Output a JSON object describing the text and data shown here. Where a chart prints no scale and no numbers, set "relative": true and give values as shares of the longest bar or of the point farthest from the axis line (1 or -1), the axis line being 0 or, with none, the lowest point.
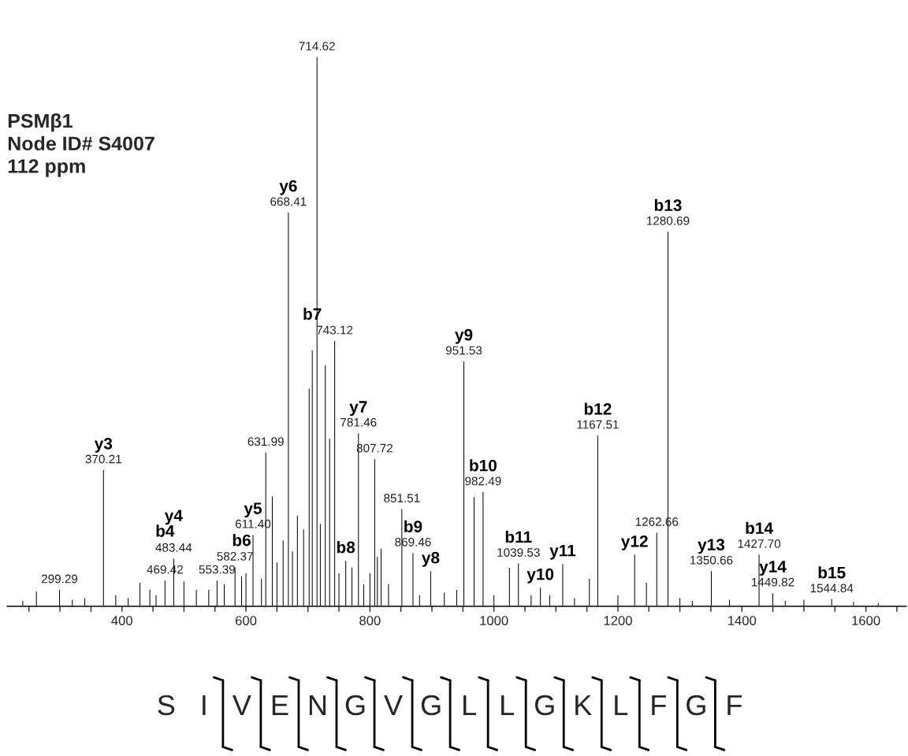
{
  "chart_data": {
    "type": "bar",
    "relative": true,
    "color": "#000000",
    "x": [
      240,
      262,
      299.29,
      320,
      340,
      370.21,
      390,
      410,
      429,
      445,
      455,
      469.42,
      483.44,
      500,
      520,
      540,
      553.39,
      565,
      582.37,
      593,
      600,
      611.4,
      625,
      631.99,
      642.5,
      650,
      660,
      668.41,
      675,
      683,
      693,
      702,
      707,
      714.62,
      720,
      728,
      735,
      743.12,
      750,
      761,
      771,
      781.46,
      790,
      800,
      807.72,
      812,
      818,
      830,
      851.51,
      869.46,
      880,
      898,
      920,
      940,
      951.53,
      968,
      982.49,
      1000,
      1025,
      1039.53,
      1060,
      1075,
      1090,
      1111,
      1130,
      1154,
      1167.51,
      1200,
      1227,
      1246,
      1262.66,
      1280.69,
      1300,
      1320,
      1350.66,
      1380,
      1427.7,
      1449.82,
      1470,
      1500,
      1544.84,
      1580,
      1620
    ],
    "values": [
      0.01,
      0.027,
      0.03,
      0.012,
      0.015,
      0.248,
      0.02,
      0.015,
      0.043,
      0.03,
      0.02,
      0.047,
      0.087,
      0.045,
      0.03,
      0.03,
      0.047,
      0.04,
      0.071,
      0.054,
      0.06,
      0.13,
      0.05,
      0.28,
      0.2,
      0.08,
      0.12,
      0.717,
      0.1,
      0.165,
      0.14,
      0.396,
      0.466,
      1,
      0.15,
      0.439,
      0.305,
      0.483,
      0.06,
      0.083,
      0.071,
      0.315,
      0.04,
      0.06,
      0.268,
      0.09,
      0.105,
      0.04,
      0.177,
      0.097,
      0.02,
      0.064,
      0.025,
      0.03,
      0.446,
      0.199,
      0.208,
      0.02,
      0.07,
      0.078,
      0.02,
      0.034,
      0.02,
      0.077,
      0.015,
      0.05,
      0.311,
      0.02,
      0.094,
      0.043,
      0.134,
      0.682,
      0.015,
      0.01,
      0.064,
      0.012,
      0.094,
      0.024,
      0.01,
      0.012,
      0.013,
      0.008,
      0.006
    ],
    "xlim": [
      215,
      1665
    ],
    "xticks": [
      {
        "value": 250,
        "label": null
      },
      {
        "value": 300,
        "label": null
      },
      {
        "value": 350,
        "label": null
      },
      400,
      {
        "value": 450,
        "label": null
      },
      {
        "value": 500,
        "label": null
      },
      {
        "value": 550,
        "label": null
      },
      600,
      {
        "value": 650,
        "label": null
      },
      {
        "value": 700,
        "label": null
      },
      {
        "value": 750,
        "label": null
      },
      800,
      {
        "value": 850,
        "label": null
      },
      {
        "value": 900,
        "label": null
      },
      {
        "value": 950,
        "label": null
      },
      1000,
      {
        "value": 1050,
        "label": null
      },
      {
        "value": 1100,
        "label": null
      },
      {
        "value": 1150,
        "label": null
      },
      1200,
      {
        "value": 1250,
        "label": null
      },
      {
        "value": 1300,
        "label": null
      },
      {
        "value": 1350,
        "label": null
      },
      1400,
      {
        "value": 1450,
        "label": null
      },
      {
        "value": 1500,
        "label": null
      },
      {
        "value": 1550,
        "label": null
      },
      1600,
      {
        "value": 1650,
        "label": null
      }
    ],
    "grid": false,
    "annotations": [
      "PSMβ1\nNode ID# S4007\n112 ppm",
      "S I V E N G V G L L G K L F G F",
      {
        "text": "299.29",
        "x": 299.29,
        "y": 0.03
      },
      {
        "text": "370.21",
        "x": 370.21,
        "y": 0.248
      },
      {
        "text": "469.42",
        "x": 469.42,
        "y": 0.047
      },
      {
        "text": "483.44",
        "x": 483.44,
        "y": 0.087
      },
      {
        "text": "553.39",
        "x": 553.39,
        "y": 0.047
      },
      {
        "text": "582.37",
        "x": 582.37,
        "y": 0.071
      },
      {
        "text": "611.40",
        "x": 611.4,
        "y": 0.13
      },
      {
        "text": "631.99",
        "x": 631.99,
        "y": 0.28
      },
      {
        "text": "668.41",
        "x": 668.41,
        "y": 0.717
      },
      {
        "text": "714.62",
        "x": 714.62,
        "y": 1
      },
      {
        "text": "743.12",
        "x": 743.12,
        "y": 0.483
      },
      {
        "text": "781.46",
        "x": 781.46,
        "y": 0.315
      },
      {
        "text": "807.72",
        "x": 807.72,
        "y": 0.268
      },
      {
        "text": "851.51",
        "x": 851.51,
        "y": 0.177
      },
      {
        "text": "869.46",
        "x": 869.46,
        "y": 0.097
      },
      {
        "text": "951.53",
        "x": 951.53,
        "y": 0.446
      },
      {
        "text": "982.49",
        "x": 982.49,
        "y": 0.208
      },
      {
        "text": "1039.53",
        "x": 1039.53,
        "y": 0.078
      },
      {
        "text": "1167.51",
        "x": 1167.51,
        "y": 0.311
      },
      {
        "text": "1262.66",
        "x": 1262.66,
        "y": 0.134
      },
      {
        "text": "1280.69",
        "x": 1280.69,
        "y": 0.682
      },
      {
        "text": "1350.66",
        "x": 1350.66,
        "y": 0.064
      },
      {
        "text": "1427.70",
        "x": 1427.7,
        "y": 0.094
      },
      {
        "text": "1449.82",
        "x": 1449.82,
        "y": 0.024
      },
      {
        "text": "1544.84",
        "x": 1544.84,
        "y": 0.013
      },
      {
        "text": "y3",
        "x": 370.21,
        "y": 0.248
      },
      {
        "text": "b4",
        "x": 469.42,
        "y": 0.047
      },
      {
        "text": "y4",
        "x": 483.44,
        "y": 0.087
      },
      {
        "text": "y5",
        "x": 611.4,
        "y": 0.13
      },
      {
        "text": "b6",
        "x": 593,
        "y": 0.054
      },
      {
        "text": "y6",
        "x": 668.41,
        "y": 0.717
      },
      {
        "text": "b7",
        "x": 707,
        "y": 0.466
      },
      {
        "text": "y7",
        "x": 781.46,
        "y": 0.315
      },
      {
        "text": "b8",
        "x": 761,
        "y": 0.083
      },
      {
        "text": "b9",
        "x": 869.46,
        "y": 0.097
      },
      {
        "text": "y8",
        "x": 898,
        "y": 0.064
      },
      {
        "text": "y9",
        "x": 951.53,
        "y": 0.446
      },
      {
        "text": "b10",
        "x": 982.49,
        "y": 0.208
      },
      {
        "text": "b11",
        "x": 1039.53,
        "y": 0.078
      },
      {
        "text": "y10",
        "x": 1075,
        "y": 0.034
      },
      {
        "text": "y11",
        "x": 1111,
        "y": 0.077
      },
      {
        "text": "b12",
        "x": 1167.51,
        "y": 0.311
      },
      {
        "text": "y12",
        "x": 1227,
        "y": 0.094
      },
      {
        "text": "b13",
        "x": 1280.69,
        "y": 0.682
      },
      {
        "text": "y13",
        "x": 1350.66,
        "y": 0.064
      },
      {
        "text": "b14",
        "x": 1427.7,
        "y": 0.094
      },
      {
        "text": "y14",
        "x": 1449.82,
        "y": 0.024
      },
      {
        "text": "b15",
        "x": 1544.84,
        "y": 0.013
      }
    ]
  }
}
